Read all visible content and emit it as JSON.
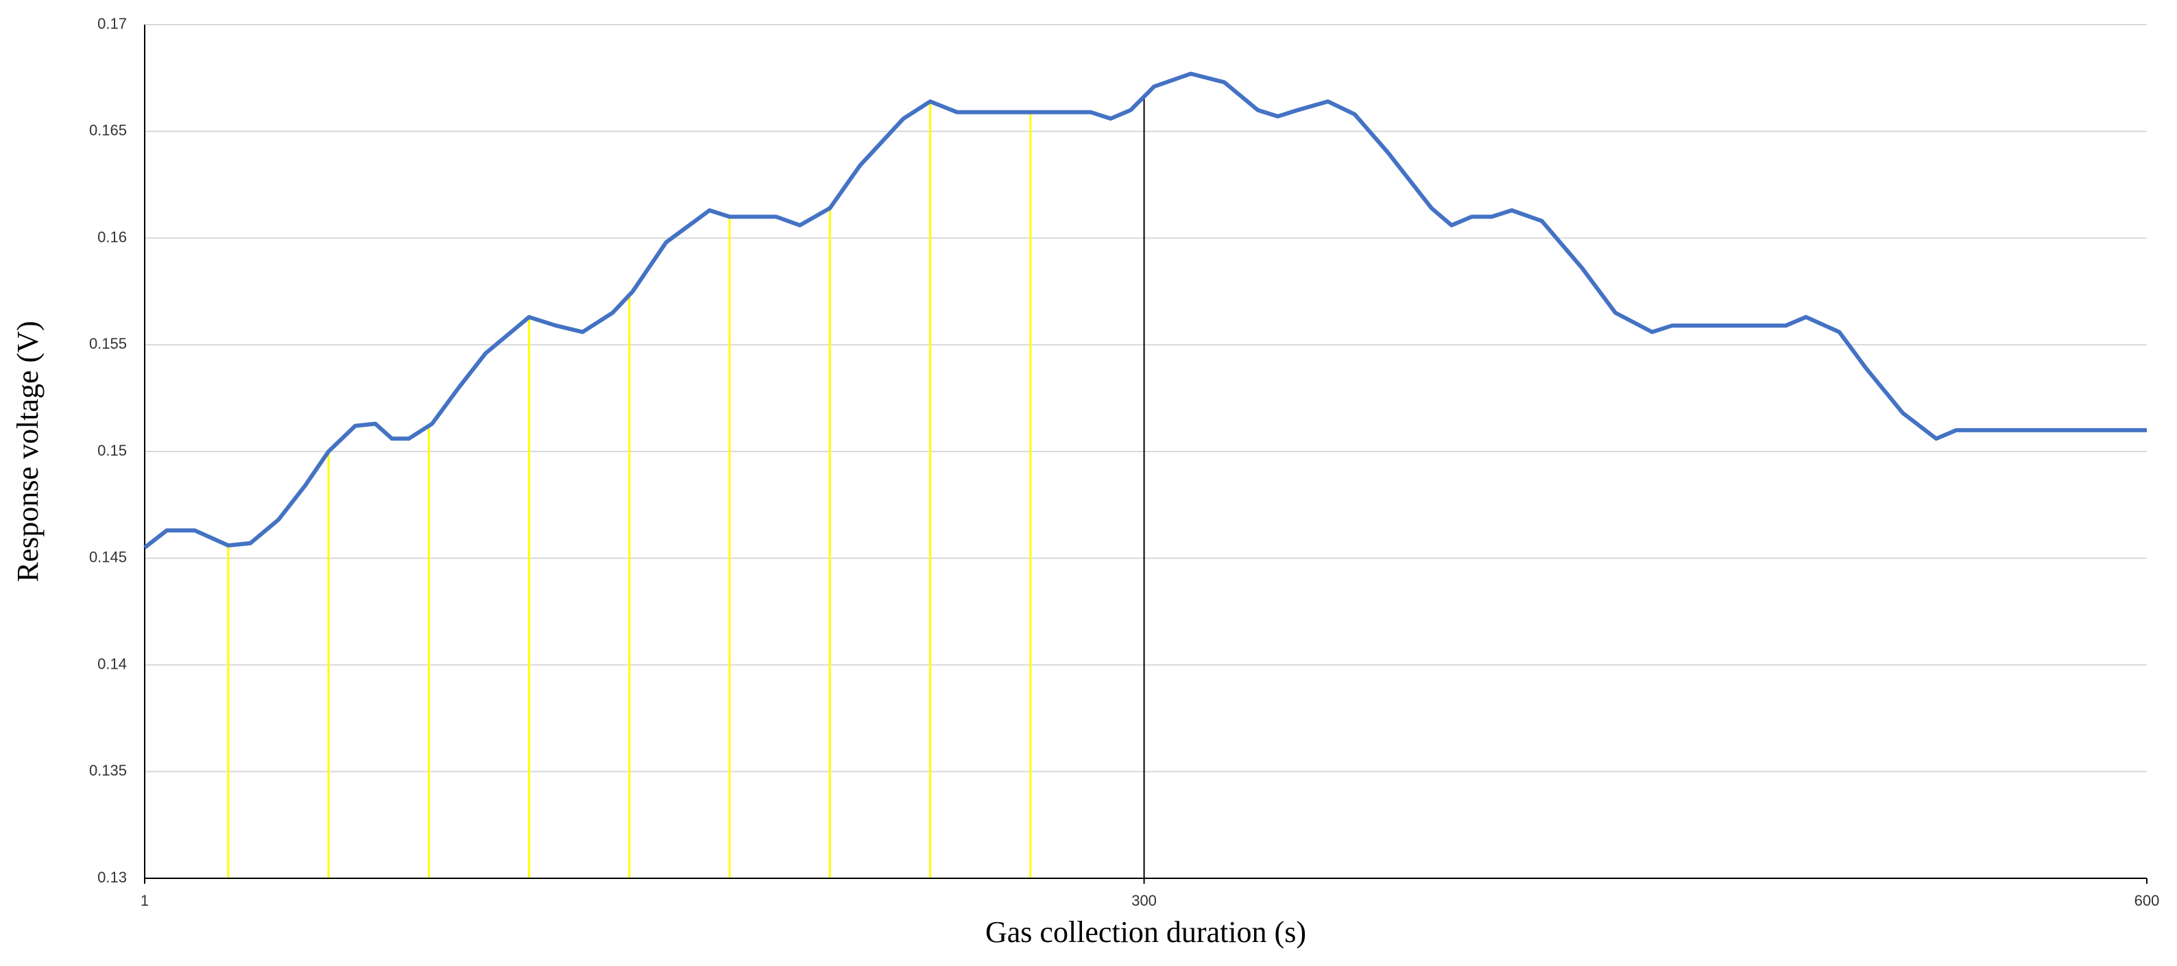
{
  "chart_data": {
    "type": "line",
    "x_label": "Gas collection duration (s)",
    "y_label": "Response voltage (V)",
    "x": [
      1,
      7.6,
      16,
      26,
      32.6,
      41,
      49,
      56,
      64,
      70,
      75,
      80,
      87,
      95,
      103,
      116,
      124,
      132,
      141,
      147,
      157,
      170,
      176,
      190,
      197,
      206,
      215,
      228,
      236,
      244,
      284,
      290,
      296,
      303,
      314,
      324,
      334,
      340,
      346,
      355,
      363,
      373,
      386,
      392,
      398,
      404,
      410,
      419,
      431,
      441,
      452,
      458,
      492,
      498,
      508,
      516,
      527,
      537,
      543,
      600
    ],
    "values": [
      0.1455,
      0.1463,
      0.1463,
      0.1456,
      0.1457,
      0.1468,
      0.1484,
      0.15,
      0.1512,
      0.1513,
      0.1506,
      0.1506,
      0.1513,
      0.153,
      0.1546,
      0.1563,
      0.1559,
      0.1556,
      0.1565,
      0.1575,
      0.1598,
      0.1613,
      0.161,
      0.161,
      0.1606,
      0.1614,
      0.1634,
      0.1656,
      0.1664,
      0.1659,
      0.1659,
      0.1656,
      0.166,
      0.1671,
      0.1677,
      0.1673,
      0.166,
      0.1657,
      0.166,
      0.1664,
      0.1658,
      0.164,
      0.1614,
      0.1606,
      0.161,
      0.161,
      0.1613,
      0.1608,
      0.1586,
      0.1565,
      0.1556,
      0.1559,
      0.1559,
      0.1563,
      0.1556,
      0.1539,
      0.1518,
      0.1506,
      0.151,
      0.151
    ],
    "color": "#4472c4",
    "reference_lines": {
      "x": [
        26,
        56,
        86,
        116,
        146,
        176,
        206,
        236,
        266
      ],
      "color": "#ffff00"
    },
    "marker_line": {
      "x": 300,
      "color": "#000000"
    },
    "xlim": [
      1,
      600
    ],
    "xticks": [
      1,
      300,
      600
    ],
    "ylim": [
      0.13,
      0.17
    ],
    "yticks": [
      0.13,
      0.135,
      0.14,
      0.145,
      0.15,
      0.155,
      0.16,
      0.165,
      0.17
    ],
    "grid": true
  }
}
